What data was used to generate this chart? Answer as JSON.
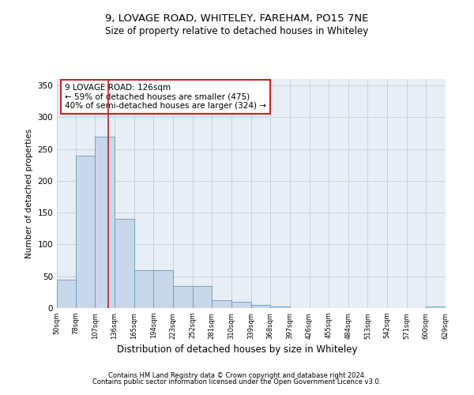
{
  "title1": "9, LOVAGE ROAD, WHITELEY, FAREHAM, PO15 7NE",
  "title2": "Size of property relative to detached houses in Whiteley",
  "xlabel": "Distribution of detached houses by size in Whiteley",
  "ylabel": "Number of detached properties",
  "footnote1": "Contains HM Land Registry data © Crown copyright and database right 2024.",
  "footnote2": "Contains public sector information licensed under the Open Government Licence v3.0.",
  "annotation_line1": "9 LOVAGE ROAD: 126sqm",
  "annotation_line2": "← 59% of detached houses are smaller (475)",
  "annotation_line3": "40% of semi-detached houses are larger (324) →",
  "bar_color": "#c8d8ea",
  "bar_edge_color": "#6699bb",
  "property_line_color": "#bb2222",
  "property_value": 126,
  "bin_edges": [
    50,
    78,
    107,
    136,
    165,
    194,
    223,
    252,
    281,
    310,
    339,
    368,
    397,
    426,
    455,
    484,
    513,
    542,
    571,
    600,
    629
  ],
  "bar_heights": [
    45,
    240,
    270,
    140,
    60,
    60,
    35,
    35,
    12,
    10,
    5,
    3,
    0,
    0,
    0,
    0,
    0,
    0,
    0,
    3
  ],
  "ylim": [
    0,
    360
  ],
  "yticks": [
    0,
    50,
    100,
    150,
    200,
    250,
    300,
    350
  ],
  "plot_bg_color": "#e8eef5",
  "fig_bg_color": "#ffffff",
  "grid_color": "#c8d0dc"
}
